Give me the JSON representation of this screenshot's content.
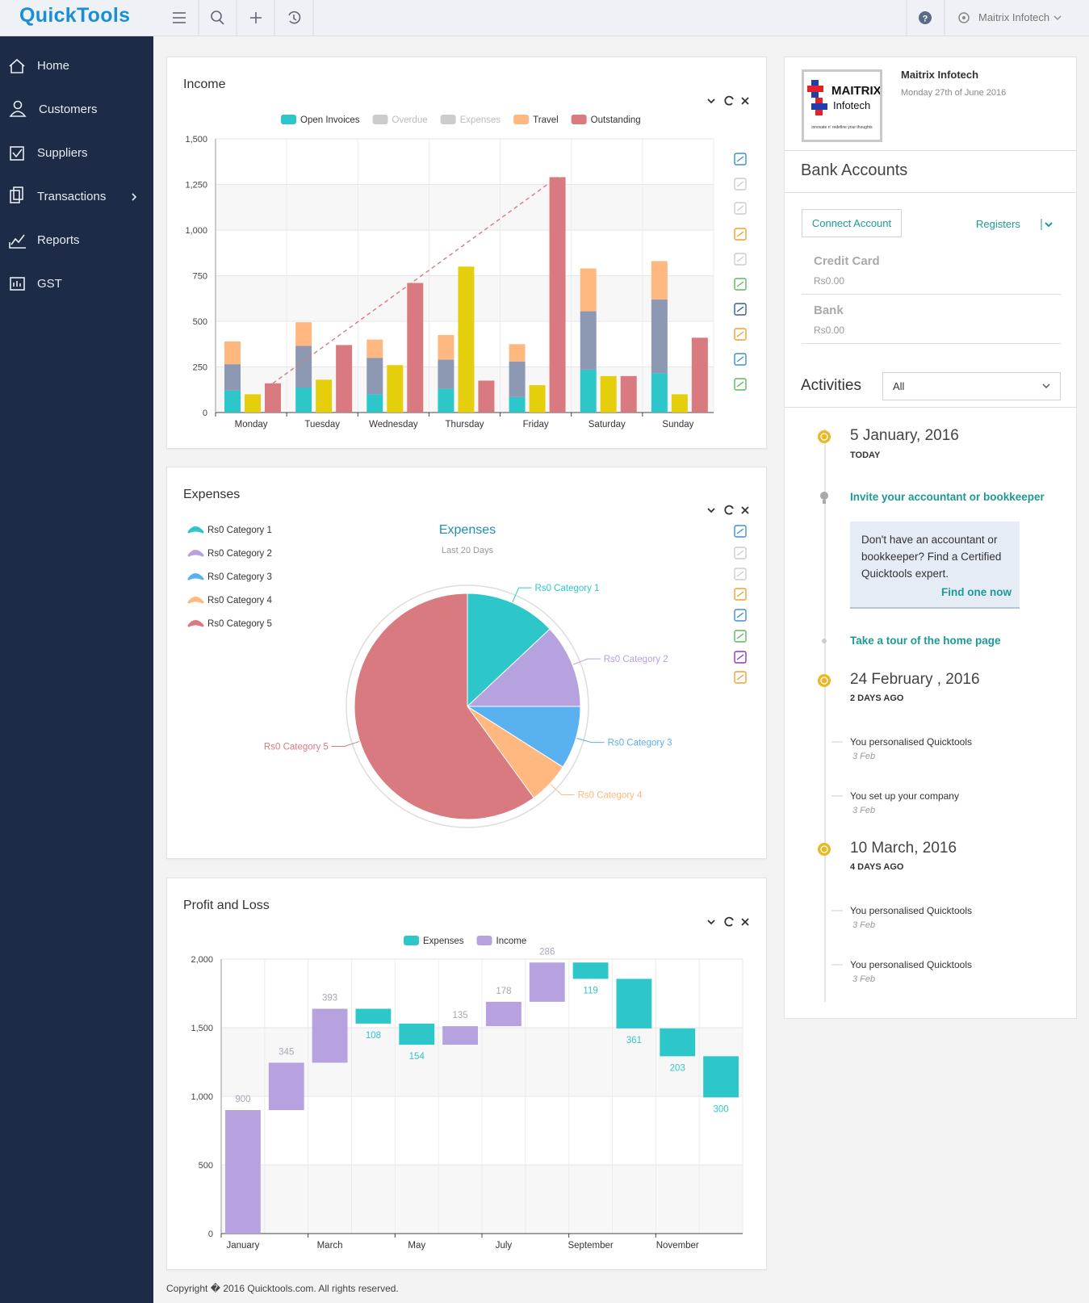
{
  "header": {
    "logo": "QuickTools",
    "company": "Maitrix Infotech"
  },
  "nav": [
    "Home",
    "Customers",
    "Suppliers",
    "Transactions",
    "Reports",
    "GST"
  ],
  "chart_data": [
    {
      "type": "bar",
      "title": "Income",
      "categories": [
        "Monday",
        "Tuesday",
        "Wednesday",
        "Thursday",
        "Friday",
        "Saturday",
        "Sunday"
      ],
      "series": [
        {
          "name": "Open Invoices",
          "color": "#2ec7c9",
          "stack": true,
          "values": [
            120,
            135,
            100,
            130,
            85,
            235,
            215
          ]
        },
        {
          "name": "Overdue",
          "color": "#8d98b3",
          "stack": true,
          "legend_inactive": true,
          "values": [
            145,
            230,
            200,
            160,
            195,
            320,
            405
          ]
        },
        {
          "name": "Expenses",
          "color": "#e5cf0d",
          "legend_inactive": true,
          "values": [
            100,
            180,
            260,
            800,
            150,
            200,
            100
          ]
        },
        {
          "name": "Travel",
          "color": "#ffb980",
          "stack": true,
          "values": [
            125,
            130,
            100,
            135,
            95,
            235,
            210
          ]
        },
        {
          "name": "Outstanding",
          "color": "#d87a80",
          "values": [
            160,
            370,
            710,
            175,
            1290,
            200,
            410
          ]
        }
      ],
      "ylim": [
        0,
        1500
      ],
      "yticks": [
        0,
        250,
        500,
        750,
        {
          "value": 1000,
          "label": "1,000"
        },
        {
          "value": 1250,
          "label": "1,250"
        },
        {
          "value": 1500,
          "label": "1,500"
        }
      ],
      "grid": true
    },
    {
      "type": "pie",
      "title": "Expenses",
      "pie_title": "Expenses",
      "subtitle": "Last 20 Days",
      "categories": [
        "Rs0 Category 1",
        "Rs0 Category 2",
        "Rs0 Category 3",
        "Rs0 Category 4",
        "Rs0 Category 5"
      ],
      "values": [
        13,
        12,
        9,
        6,
        60
      ],
      "colors": [
        "#2ec7c9",
        "#b6a2de",
        "#5ab1ef",
        "#ffb980",
        "#d87a80"
      ]
    },
    {
      "type": "waterfall",
      "title": "Profit and Loss",
      "categories": [
        "January",
        null,
        "March",
        null,
        "May",
        null,
        "July",
        null,
        "September",
        null,
        "November",
        null
      ],
      "series": [
        {
          "name": "Expenses",
          "color": "#2ec7c9",
          "sign": -1,
          "values": [
            null,
            null,
            null,
            108,
            154,
            null,
            null,
            null,
            119,
            361,
            203,
            300
          ]
        },
        {
          "name": "Income",
          "color": "#b6a2de",
          "sign": 1,
          "values": [
            900,
            345,
            393,
            null,
            null,
            135,
            178,
            286,
            null,
            null,
            null,
            null
          ]
        }
      ],
      "ylim": [
        0,
        2000
      ],
      "yticks": [
        0,
        500,
        {
          "value": 1000,
          "label": "1,000"
        },
        {
          "value": 1500,
          "label": "1,500"
        },
        {
          "value": 2000,
          "label": "2,000"
        }
      ],
      "grid": true
    }
  ],
  "company_panel": {
    "name": "Maitrix Infotech",
    "date": "Monday 27th of June 2016",
    "logo_lines": [
      "MAITRIX",
      "Infotech",
      "innovate n' redefine your thoughts"
    ]
  },
  "bank_accounts": {
    "title": "Bank Accounts",
    "connect": "Connect Account",
    "registers": "Registers",
    "accounts": [
      {
        "name": "Credit Card",
        "balance": "Rs0.00"
      },
      {
        "name": "Bank",
        "balance": "Rs0.00"
      }
    ]
  },
  "activities": {
    "title": "Activities",
    "filter": "All",
    "timeline": [
      {
        "date": "5 January, 2016",
        "ago": "TODAY"
      },
      {
        "title": "Invite your accountant or bookkeeper",
        "message": "Don't have an accountant or bookkeeper? Find a Certified Quicktools expert.",
        "link": "Find one now"
      },
      {
        "title": "Take a tour of the home page"
      },
      {
        "date": "24 February , 2016",
        "ago": "2 DAYS AGO"
      },
      {
        "text": "You personalised Quicktools",
        "when": "3 Feb"
      },
      {
        "text": "You set up your company",
        "when": "3 Feb"
      },
      {
        "date": "10 March, 2016",
        "ago": "4 DAYS AGO"
      },
      {
        "text": "You personalised Quicktools",
        "when": "3 Feb"
      },
      {
        "text": "You personalised Quicktools",
        "when": "3 Feb"
      }
    ]
  },
  "footer": "Copyright � 2016 Quicktools.com. All rights reserved."
}
